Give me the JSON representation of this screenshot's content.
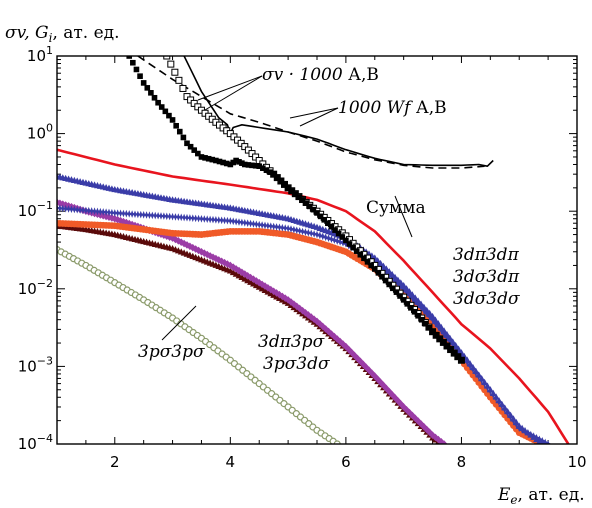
{
  "chart_data": {
    "type": "line",
    "title": "",
    "ylabel": "σv,  G_i, ат. ед.",
    "ylabel_parts": {
      "symbol": "σv,  G",
      "sub": "i",
      "rest": ", ат. ед."
    },
    "xlabel": "E_e, ат. ед.",
    "xlabel_parts": {
      "symbol": "E",
      "sub": "e",
      "rest": ", ат. ед."
    },
    "xlim": [
      1,
      10
    ],
    "ylim": [
      0.0001,
      10
    ],
    "yscale": "log",
    "x_ticks": [
      2,
      4,
      6,
      8,
      10
    ],
    "y_ticks": [
      {
        "value": 0.0001,
        "base": "10",
        "exp": "−4"
      },
      {
        "value": 0.001,
        "base": "10",
        "exp": "−3"
      },
      {
        "value": 0.01,
        "base": "10",
        "exp": "−2"
      },
      {
        "value": 0.1,
        "base": "10",
        "exp": "−1"
      },
      {
        "value": 1,
        "base": "10",
        "exp": "0"
      },
      {
        "value": 10,
        "base": "10",
        "exp": "1"
      }
    ],
    "grid": false,
    "legend": "none",
    "series": [
      {
        "label": "σv·1000 А",
        "color": "#000000",
        "style": "filled-squares",
        "x": [
          2.25,
          2.5,
          2.75,
          3.0,
          3.25,
          3.5,
          3.75,
          4.0,
          4.1,
          4.25,
          4.5,
          4.75,
          5.0,
          5.25,
          5.5,
          6.0,
          6.5,
          7.0,
          7.5,
          8.0
        ],
        "y": [
          10,
          4.5,
          2.5,
          1.5,
          0.75,
          0.5,
          0.45,
          0.4,
          0.45,
          0.4,
          0.38,
          0.3,
          0.2,
          0.14,
          0.095,
          0.042,
          0.018,
          0.0072,
          0.0028,
          0.0012
        ]
      },
      {
        "label": "σv·1000 В",
        "color": "#000000",
        "style": "open-squares",
        "x": [
          2.9,
          3.25,
          3.5,
          3.75,
          4.0,
          4.25,
          4.5,
          4.75,
          5.0,
          5.5,
          6.0,
          6.5,
          7.0,
          7.25,
          7.5,
          8.0
        ],
        "y": [
          10,
          3.0,
          2.0,
          1.4,
          1.0,
          0.68,
          0.45,
          0.3,
          0.2,
          0.1,
          0.048,
          0.02,
          0.0078,
          0.0048,
          0.0028,
          0.0012
        ]
      },
      {
        "label": "1000Wf А",
        "color": "#000000",
        "style": "solid",
        "x": [
          3.2,
          3.5,
          3.8,
          3.95,
          4.0,
          4.05,
          4.2,
          4.5,
          5.0,
          5.5,
          6.0,
          6.5,
          7.0,
          7.5,
          8.0,
          8.3,
          8.45,
          8.55
        ],
        "y": [
          10,
          3.5,
          1.6,
          1.3,
          1.0,
          1.2,
          1.3,
          1.2,
          1.05,
          0.85,
          0.62,
          0.48,
          0.4,
          0.39,
          0.39,
          0.4,
          0.38,
          0.45
        ]
      },
      {
        "label": "1000Wf В",
        "color": "#000000",
        "style": "dashed",
        "x": [
          2.4,
          3.0,
          3.5,
          4.0,
          4.5,
          5.0,
          5.5,
          6.0,
          6.5,
          7.0,
          7.5,
          8.0,
          8.4
        ],
        "y": [
          10,
          5.0,
          3.0,
          1.8,
          1.4,
          1.05,
          0.8,
          0.58,
          0.46,
          0.39,
          0.36,
          0.36,
          0.38
        ]
      },
      {
        "label": "Сумма",
        "color": "#e8141e",
        "style": "solid-thick",
        "x": [
          1.0,
          2.0,
          3.0,
          4.0,
          5.0,
          5.5,
          6.0,
          6.5,
          7.0,
          7.5,
          8.0,
          8.5,
          9.0,
          9.5,
          9.85
        ],
        "y": [
          0.62,
          0.4,
          0.28,
          0.22,
          0.17,
          0.14,
          0.1,
          0.055,
          0.023,
          0.009,
          0.0035,
          0.0017,
          0.0007,
          0.00026,
          0.0001
        ]
      },
      {
        "label": "3dπ3dπ",
        "color": "#3a3ca8",
        "style": "triangles",
        "x": [
          1.0,
          2.0,
          3.0,
          4.0,
          5.0,
          5.5,
          6.0,
          6.5,
          7.0,
          7.5,
          8.0,
          8.5,
          9.0,
          9.4
        ],
        "y": [
          0.28,
          0.19,
          0.14,
          0.11,
          0.08,
          0.062,
          0.045,
          0.025,
          0.011,
          0.0044,
          0.0015,
          0.0005,
          0.00017,
          0.0001
        ]
      },
      {
        "label": "3dσ3dπ",
        "color": "#3a3ca8",
        "style": "stars",
        "x": [
          1.0,
          2.0,
          3.0,
          4.0,
          5.0,
          5.5,
          6.0,
          6.5,
          7.0,
          7.5,
          8.0,
          8.5,
          9.0,
          9.5
        ],
        "y": [
          0.11,
          0.095,
          0.085,
          0.075,
          0.06,
          0.05,
          0.038,
          0.022,
          0.01,
          0.004,
          0.0014,
          0.00048,
          0.00016,
          0.0001
        ]
      },
      {
        "label": "3dσ3dσ",
        "color": "#f05a28",
        "style": "filled-circles",
        "x": [
          1.0,
          2.0,
          3.0,
          3.5,
          4.0,
          4.5,
          5.0,
          5.5,
          6.0,
          6.5,
          7.0,
          7.5,
          8.0,
          8.5,
          9.0,
          9.4
        ],
        "y": [
          0.07,
          0.065,
          0.052,
          0.05,
          0.055,
          0.055,
          0.05,
          0.04,
          0.03,
          0.018,
          0.0085,
          0.0034,
          0.0012,
          0.0004,
          0.00014,
          0.0001
        ]
      },
      {
        "label": "3dπ3pσ",
        "color": "#9b3ca6",
        "style": "diamonds",
        "x": [
          1.0,
          1.5,
          2.0,
          3.0,
          4.0,
          5.0,
          5.5,
          6.0,
          6.5,
          7.0,
          7.5,
          7.7
        ],
        "y": [
          0.13,
          0.1,
          0.08,
          0.045,
          0.02,
          0.0072,
          0.0038,
          0.0018,
          0.00075,
          0.0003,
          0.00013,
          0.0001
        ]
      },
      {
        "label": "3pσ3dσ",
        "color": "#5a0a0a",
        "style": "dark-triangles",
        "x": [
          1.0,
          1.5,
          2.0,
          3.0,
          4.0,
          5.0,
          5.5,
          6.0,
          6.5,
          7.0,
          7.5,
          7.65
        ],
        "y": [
          0.065,
          0.058,
          0.05,
          0.033,
          0.017,
          0.0065,
          0.0035,
          0.0017,
          0.0007,
          0.00028,
          0.00012,
          0.0001
        ]
      },
      {
        "label": "3pσ3pσ",
        "color": "#8a9a6a",
        "style": "open-circles",
        "x": [
          1.0,
          1.5,
          2.0,
          2.5,
          3.0,
          3.5,
          4.0,
          4.5,
          5.0,
          5.5,
          5.85
        ],
        "y": [
          0.032,
          0.02,
          0.012,
          0.0072,
          0.0042,
          0.0023,
          0.0012,
          0.0006,
          0.0003,
          0.00015,
          0.0001
        ]
      }
    ],
    "annotations": [
      {
        "id": "ann-sv",
        "text_main": "σv · 1000",
        "text_rest": " А,В"
      },
      {
        "id": "ann-wf",
        "text_main": "1000 Wf",
        "text_rest": " А,В"
      },
      {
        "id": "ann-sum",
        "text_main": "Сумма",
        "text_rest": ""
      },
      {
        "id": "ann-dpdp",
        "text_main": "3dπ3dπ",
        "text_rest": ""
      },
      {
        "id": "ann-dsdp",
        "text_main": "3dσ3dπ",
        "text_rest": ""
      },
      {
        "id": "ann-dsds",
        "text_main": "3dσ3dσ",
        "text_rest": ""
      },
      {
        "id": "ann-dpps",
        "text_main": "3dπ3pσ",
        "text_rest": ""
      },
      {
        "id": "ann-psds",
        "text_main": "3pσ3dσ",
        "text_rest": ""
      },
      {
        "id": "ann-psps",
        "text_main": "3pσ3pσ",
        "text_rest": ""
      }
    ]
  }
}
